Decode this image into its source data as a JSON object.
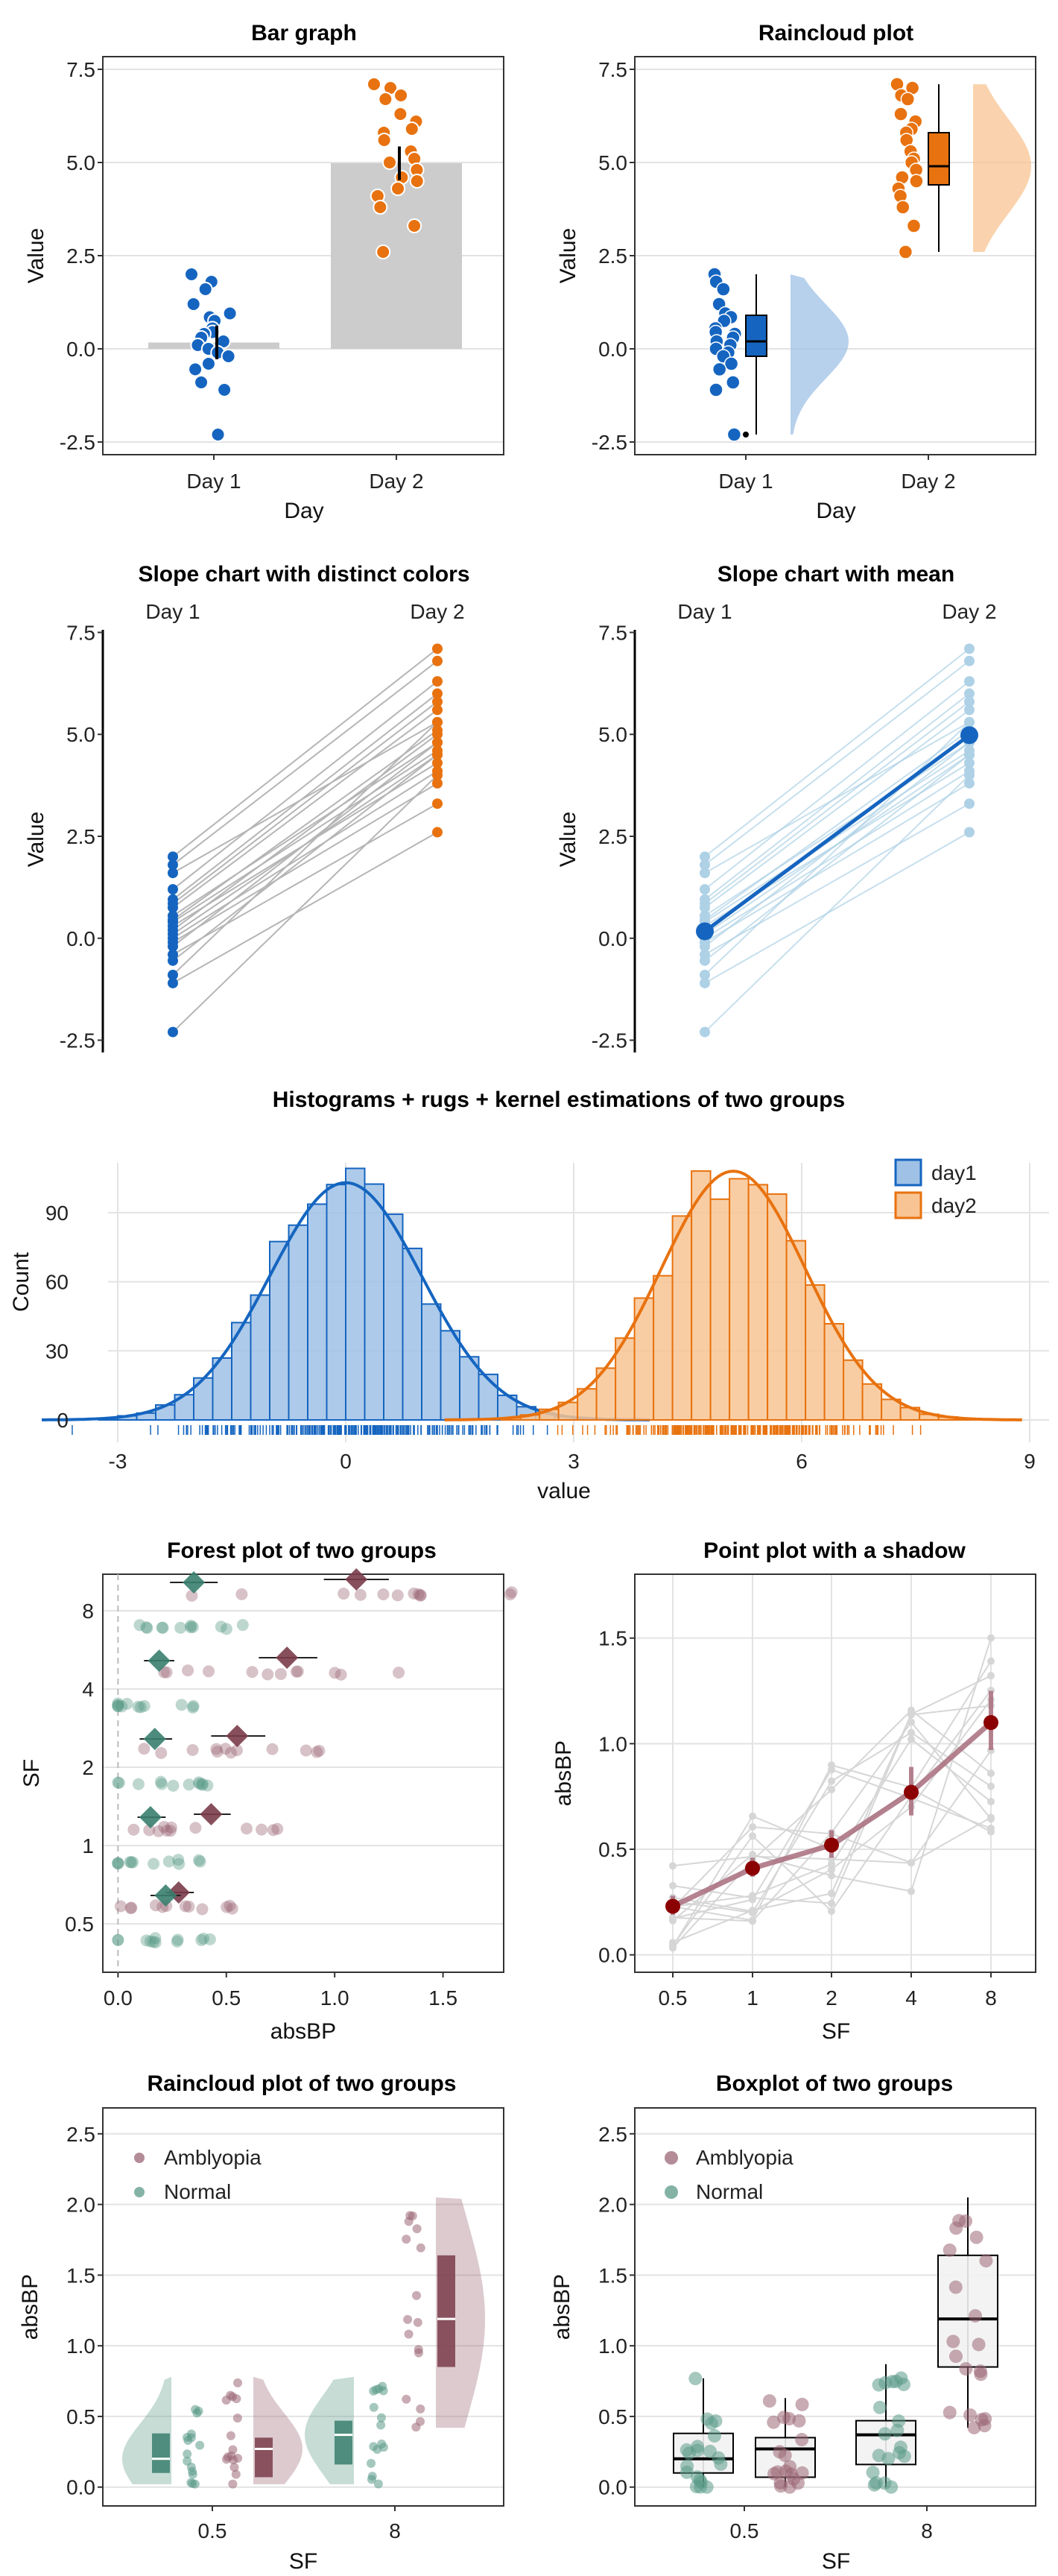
{
  "colors": {
    "blue": "#1565c0",
    "blue_fill": "#9fc1e6",
    "blue_light": "#aed1e6",
    "orange": "#e8720f",
    "orange_fill": "#f8c493",
    "gray_bar": "#cccccc",
    "amblyopia": "#9a6675",
    "amblyopia_dark": "#7a3c4a",
    "normal": "#5b9a88",
    "normal_dark": "#3a7f6f",
    "shadow_line": "#a86c7c",
    "mean_point": "#8b0000"
  },
  "chart_data": [
    {
      "id": "bar",
      "type": "bar",
      "title": "Bar graph",
      "xlabel": "Day",
      "ylabel": "Value",
      "categories": [
        "Day 1",
        "Day 2"
      ],
      "values": [
        0.17,
        4.98
      ],
      "ylim": [
        -2.6,
        7.6
      ],
      "yticks": [
        "-2.5",
        "0.0",
        "2.5",
        "5.0",
        "7.5"
      ],
      "points": {
        "Day 1": [
          2.0,
          1.8,
          1.6,
          1.2,
          0.95,
          0.85,
          0.75,
          0.55,
          0.45,
          0.4,
          0.3,
          0.2,
          0.1,
          0.0,
          -0.1,
          -0.2,
          -0.4,
          -0.55,
          -0.9,
          -1.1,
          -2.3
        ],
        "Day 2": [
          7.1,
          7.0,
          6.8,
          6.7,
          6.3,
          6.1,
          5.9,
          5.8,
          5.6,
          5.3,
          5.1,
          5.0,
          4.8,
          4.6,
          4.5,
          4.3,
          4.1,
          3.8,
          3.3,
          2.6
        ]
      }
    },
    {
      "id": "raincloud",
      "type": "raincloud",
      "title": "Raincloud plot",
      "xlabel": "Day",
      "ylabel": "Value",
      "categories": [
        "Day 1",
        "Day 2"
      ],
      "ylim": [
        -2.6,
        7.6
      ],
      "yticks": [
        "-2.5",
        "0.0",
        "2.5",
        "5.0",
        "7.5"
      ],
      "boxes": [
        {
          "group": "Day 1",
          "min": -2.3,
          "q1": -0.2,
          "median": 0.2,
          "q3": 0.9,
          "max": 2.0
        },
        {
          "group": "Day 2",
          "min": 2.6,
          "q1": 4.4,
          "median": 4.9,
          "q3": 5.8,
          "max": 7.1
        }
      ]
    },
    {
      "id": "slope",
      "type": "line",
      "title": "Slope chart with distinct colors",
      "ylabel": "Value",
      "categories": [
        "Day 1",
        "Day 2"
      ],
      "ylim": [
        -2.6,
        7.6
      ],
      "yticks": [
        "-2.5",
        "0.0",
        "2.5",
        "5.0",
        "7.5"
      ],
      "day1": [
        2.0,
        1.8,
        1.6,
        1.2,
        0.95,
        0.85,
        0.75,
        0.55,
        0.45,
        0.4,
        0.3,
        0.2,
        0.1,
        0.0,
        -0.1,
        -0.2,
        -0.4,
        -0.55,
        -0.9,
        -1.1,
        -2.3
      ],
      "day2": [
        7.1,
        6.8,
        5.3,
        6.3,
        6.0,
        5.8,
        5.6,
        4.8,
        5.1,
        4.6,
        4.3,
        5.0,
        4.5,
        4.1,
        3.8,
        4.8,
        3.3,
        4.5,
        5.3,
        2.6,
        4.0
      ]
    },
    {
      "id": "slope_mean",
      "type": "line",
      "title": "Slope chart with mean",
      "ylabel": "Value",
      "categories": [
        "Day 1",
        "Day 2"
      ],
      "ylim": [
        -2.6,
        7.6
      ],
      "yticks": [
        "-2.5",
        "0.0",
        "2.5",
        "5.0",
        "7.5"
      ],
      "mean": [
        0.17,
        4.98
      ]
    },
    {
      "id": "histogram",
      "type": "histogram",
      "title": "Histograms + rugs + kernel estimations of two groups",
      "xlabel": "value",
      "ylabel": "Count",
      "xlim": [
        -3.2,
        9.0
      ],
      "xticks": [
        "-3",
        "0",
        "3",
        "6",
        "9"
      ],
      "yticks": [
        "0",
        "30",
        "60",
        "90"
      ],
      "legend": [
        "day1",
        "day2"
      ],
      "legend_position": "top-right",
      "series": [
        {
          "name": "day1",
          "mean": 0.0,
          "sd": 1.0,
          "peak": 103
        },
        {
          "name": "day2",
          "mean": 5.1,
          "sd": 0.95,
          "peak": 108
        }
      ]
    },
    {
      "id": "forest",
      "type": "forest",
      "title": "Forest plot of two groups",
      "xlabel": "absBP",
      "ylabel": "SF",
      "categories": [
        "0.5",
        "1",
        "2",
        "4",
        "8"
      ],
      "xlim": [
        -0.07,
        1.78
      ],
      "xticks": [
        "0.0",
        "0.5",
        "1.0",
        "1.5"
      ],
      "amblyopia": {
        "mean": [
          0.28,
          0.43,
          0.55,
          0.78,
          1.1
        ],
        "lo": [
          0.22,
          0.35,
          0.43,
          0.65,
          0.95
        ],
        "hi": [
          0.35,
          0.52,
          0.68,
          0.92,
          1.25
        ]
      },
      "normal": {
        "mean": [
          0.22,
          0.15,
          0.17,
          0.19,
          0.35
        ],
        "lo": [
          0.15,
          0.09,
          0.1,
          0.12,
          0.24
        ],
        "hi": [
          0.29,
          0.22,
          0.25,
          0.26,
          0.46
        ]
      }
    },
    {
      "id": "point_shadow",
      "type": "line",
      "title": "Point plot with a shadow",
      "xlabel": "SF",
      "ylabel": "absBP",
      "categories": [
        "0.5",
        "1",
        "2",
        "4",
        "8"
      ],
      "ylim": [
        -0.04,
        1.76
      ],
      "yticks": [
        "0.0",
        "0.5",
        "1.0",
        "1.5"
      ],
      "mean": [
        0.23,
        0.41,
        0.52,
        0.77,
        1.1
      ],
      "ci_lo": [
        0.19,
        0.37,
        0.46,
        0.66,
        0.97
      ],
      "ci_hi": [
        0.28,
        0.46,
        0.59,
        0.89,
        1.25
      ]
    },
    {
      "id": "raincloud2",
      "type": "raincloud",
      "title": "Raincloud plot of two groups",
      "xlabel": "SF",
      "ylabel": "absBP",
      "categories": [
        "0.5",
        "8"
      ],
      "legend": [
        "Amblyopia",
        "Normal"
      ],
      "legend_position": "top-left",
      "ylim": [
        -0.07,
        2.62
      ],
      "yticks": [
        "0.0",
        "0.5",
        "1.0",
        "1.5",
        "2.0",
        "2.5"
      ],
      "boxes": [
        {
          "group": "Normal",
          "sf": "0.5",
          "q1": 0.1,
          "median": 0.2,
          "q3": 0.38
        },
        {
          "group": "Amblyopia",
          "sf": "0.5",
          "q1": 0.07,
          "median": 0.27,
          "q3": 0.35
        },
        {
          "group": "Normal",
          "sf": "8",
          "q1": 0.16,
          "median": 0.37,
          "q3": 0.47
        },
        {
          "group": "Amblyopia",
          "sf": "8",
          "q1": 0.85,
          "median": 1.19,
          "q3": 1.64
        }
      ]
    },
    {
      "id": "boxplot",
      "type": "box",
      "title": "Boxplot of two groups",
      "xlabel": "SF",
      "ylabel": "absBP",
      "categories": [
        "0.5",
        "8"
      ],
      "legend": [
        "Amblyopia",
        "Normal"
      ],
      "legend_position": "top-left",
      "ylim": [
        -0.07,
        2.62
      ],
      "yticks": [
        "0.0",
        "0.5",
        "1.0",
        "1.5",
        "2.0",
        "2.5"
      ],
      "boxes": [
        {
          "group": "Normal",
          "sf": "0.5",
          "min": 0.0,
          "q1": 0.1,
          "median": 0.2,
          "q3": 0.38,
          "max": 0.77
        },
        {
          "group": "Amblyopia",
          "sf": "0.5",
          "min": 0.0,
          "q1": 0.07,
          "median": 0.27,
          "q3": 0.35,
          "max": 0.63
        },
        {
          "group": "Normal",
          "sf": "8",
          "min": 0.0,
          "q1": 0.16,
          "median": 0.37,
          "q3": 0.47,
          "max": 0.87
        },
        {
          "group": "Amblyopia",
          "sf": "8",
          "min": 0.42,
          "q1": 0.85,
          "median": 1.19,
          "q3": 1.64,
          "max": 2.05
        }
      ]
    }
  ]
}
